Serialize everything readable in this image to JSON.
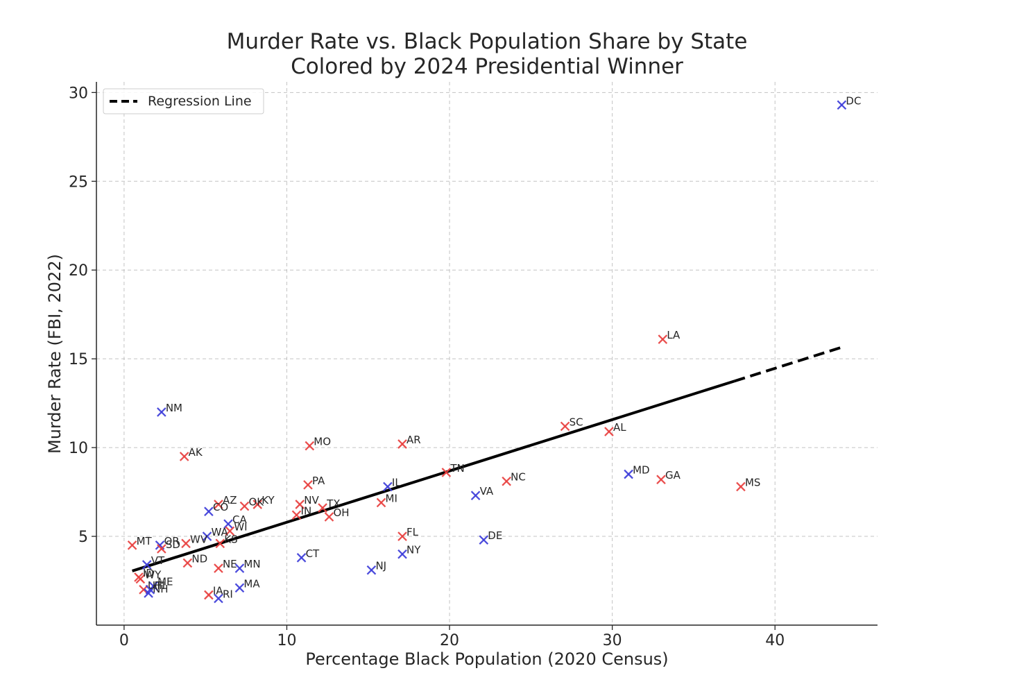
{
  "chart_data": {
    "type": "scatter",
    "title": "Murder Rate vs. Black Population Share by State",
    "subtitle": "Colored by 2024 Presidential Winner",
    "xlabel": "Percentage Black Population (2020 Census)",
    "ylabel": "Murder Rate (FBI, 2022)",
    "xlim": [
      -1.7,
      46.3
    ],
    "ylim": [
      0,
      30.6
    ],
    "xticks": [
      0,
      10,
      20,
      30,
      40
    ],
    "yticks": [
      5,
      10,
      15,
      20,
      25,
      30
    ],
    "grid": true,
    "legend": {
      "position": "top-left",
      "entries": [
        "Regression Line"
      ]
    },
    "colors": {
      "republican": "#e8403f",
      "democratic": "#3d3dd9",
      "regression": "#000000"
    },
    "regression": {
      "x": [
        0.5,
        44.1
      ],
      "y": [
        3.05,
        15.65
      ],
      "solid_until_x": 37.5
    },
    "points": [
      {
        "state": "DC",
        "x": 44.1,
        "y": 29.3,
        "party": "democratic"
      },
      {
        "state": "LA",
        "x": 33.1,
        "y": 16.1,
        "party": "republican"
      },
      {
        "state": "NM",
        "x": 2.3,
        "y": 12.0,
        "party": "democratic"
      },
      {
        "state": "SC",
        "x": 27.1,
        "y": 11.2,
        "party": "republican"
      },
      {
        "state": "AL",
        "x": 29.8,
        "y": 10.9,
        "party": "republican"
      },
      {
        "state": "MO",
        "x": 11.4,
        "y": 10.1,
        "party": "republican"
      },
      {
        "state": "AR",
        "x": 17.1,
        "y": 10.2,
        "party": "republican"
      },
      {
        "state": "AK",
        "x": 3.7,
        "y": 9.5,
        "party": "republican"
      },
      {
        "state": "TN",
        "x": 19.8,
        "y": 8.6,
        "party": "republican"
      },
      {
        "state": "MD",
        "x": 31.0,
        "y": 8.5,
        "party": "democratic"
      },
      {
        "state": "GA",
        "x": 33.0,
        "y": 8.2,
        "party": "republican"
      },
      {
        "state": "NC",
        "x": 23.5,
        "y": 8.1,
        "party": "republican"
      },
      {
        "state": "MS",
        "x": 37.9,
        "y": 7.8,
        "party": "republican"
      },
      {
        "state": "PA",
        "x": 11.3,
        "y": 7.9,
        "party": "republican"
      },
      {
        "state": "IL",
        "x": 16.2,
        "y": 7.8,
        "party": "democratic"
      },
      {
        "state": "VA",
        "x": 21.6,
        "y": 7.3,
        "party": "democratic"
      },
      {
        "state": "MI",
        "x": 15.8,
        "y": 6.9,
        "party": "republican"
      },
      {
        "state": "AZ",
        "x": 5.8,
        "y": 6.8,
        "party": "republican"
      },
      {
        "state": "OK",
        "x": 7.4,
        "y": 6.7,
        "party": "republican"
      },
      {
        "state": "KY",
        "x": 8.2,
        "y": 6.8,
        "party": "republican"
      },
      {
        "state": "NV",
        "x": 10.8,
        "y": 6.8,
        "party": "republican"
      },
      {
        "state": "TX",
        "x": 12.2,
        "y": 6.6,
        "party": "republican"
      },
      {
        "state": "CO",
        "x": 5.2,
        "y": 6.4,
        "party": "democratic"
      },
      {
        "state": "IN",
        "x": 10.6,
        "y": 6.2,
        "party": "republican"
      },
      {
        "state": "OH",
        "x": 12.6,
        "y": 6.1,
        "party": "republican"
      },
      {
        "state": "CA",
        "x": 6.4,
        "y": 5.7,
        "party": "democratic"
      },
      {
        "state": "WI",
        "x": 6.5,
        "y": 5.3,
        "party": "republican"
      },
      {
        "state": "WA",
        "x": 5.1,
        "y": 5.0,
        "party": "democratic"
      },
      {
        "state": "FL",
        "x": 17.1,
        "y": 5.0,
        "party": "republican"
      },
      {
        "state": "DE",
        "x": 22.1,
        "y": 4.8,
        "party": "democratic"
      },
      {
        "state": "KS",
        "x": 5.9,
        "y": 4.6,
        "party": "republican"
      },
      {
        "state": "WV",
        "x": 3.8,
        "y": 4.6,
        "party": "republican"
      },
      {
        "state": "MT",
        "x": 0.5,
        "y": 4.5,
        "party": "republican"
      },
      {
        "state": "OR",
        "x": 2.2,
        "y": 4.5,
        "party": "democratic"
      },
      {
        "state": "SD",
        "x": 2.3,
        "y": 4.3,
        "party": "republican"
      },
      {
        "state": "NY",
        "x": 17.1,
        "y": 4.0,
        "party": "democratic"
      },
      {
        "state": "CT",
        "x": 10.9,
        "y": 3.8,
        "party": "democratic"
      },
      {
        "state": "ND",
        "x": 3.9,
        "y": 3.5,
        "party": "republican"
      },
      {
        "state": "VT",
        "x": 1.4,
        "y": 3.4,
        "party": "democratic"
      },
      {
        "state": "NE",
        "x": 5.8,
        "y": 3.2,
        "party": "republican"
      },
      {
        "state": "MN",
        "x": 7.1,
        "y": 3.2,
        "party": "democratic"
      },
      {
        "state": "NJ",
        "x": 15.2,
        "y": 3.1,
        "party": "democratic"
      },
      {
        "state": "ID",
        "x": 0.9,
        "y": 2.7,
        "party": "republican"
      },
      {
        "state": "WY",
        "x": 1.0,
        "y": 2.6,
        "party": "republican"
      },
      {
        "state": "ME",
        "x": 1.8,
        "y": 2.2,
        "party": "democratic"
      },
      {
        "state": "UT",
        "x": 1.2,
        "y": 2.0,
        "party": "republican"
      },
      {
        "state": "HI",
        "x": 1.6,
        "y": 2.0,
        "party": "democratic"
      },
      {
        "state": "MA",
        "x": 7.1,
        "y": 2.1,
        "party": "democratic"
      },
      {
        "state": "NH",
        "x": 1.5,
        "y": 1.8,
        "party": "democratic"
      },
      {
        "state": "IA",
        "x": 5.2,
        "y": 1.7,
        "party": "republican"
      },
      {
        "state": "RI",
        "x": 5.8,
        "y": 1.5,
        "party": "democratic"
      }
    ]
  }
}
